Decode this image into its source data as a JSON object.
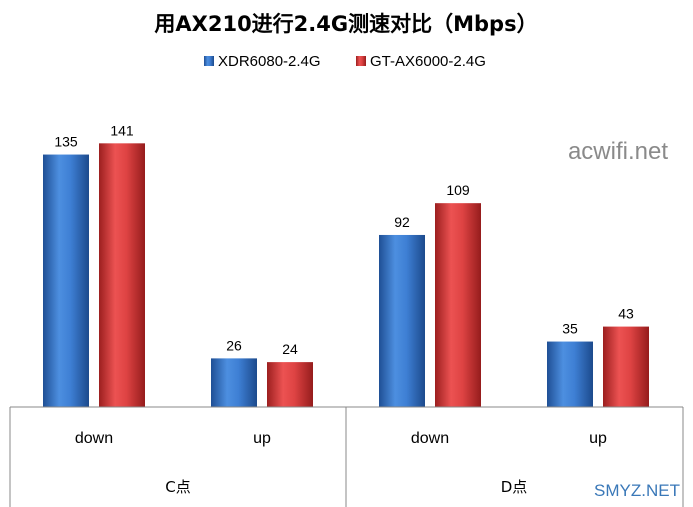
{
  "watermark_top": "acwifi.net",
  "watermark_bottom": "SMYZ.NET",
  "chart_data": {
    "type": "bar",
    "title": "用AX210进行2.4G测速对比（Mbps）",
    "groups": [
      {
        "label": "C点",
        "categories": [
          "down",
          "up"
        ]
      },
      {
        "label": "D点",
        "categories": [
          "down",
          "up"
        ]
      }
    ],
    "categories": [
      "down",
      "up",
      "down",
      "up"
    ],
    "series": [
      {
        "name": "XDR6080-2.4G",
        "color": "#2f6fc4",
        "values": [
          135,
          26,
          92,
          35
        ]
      },
      {
        "name": "GT-AX6000-2.4G",
        "color": "#d43a3a",
        "values": [
          141,
          24,
          109,
          43
        ]
      }
    ],
    "ylim": [
      0,
      160
    ],
    "legend": "top",
    "grid": false
  }
}
